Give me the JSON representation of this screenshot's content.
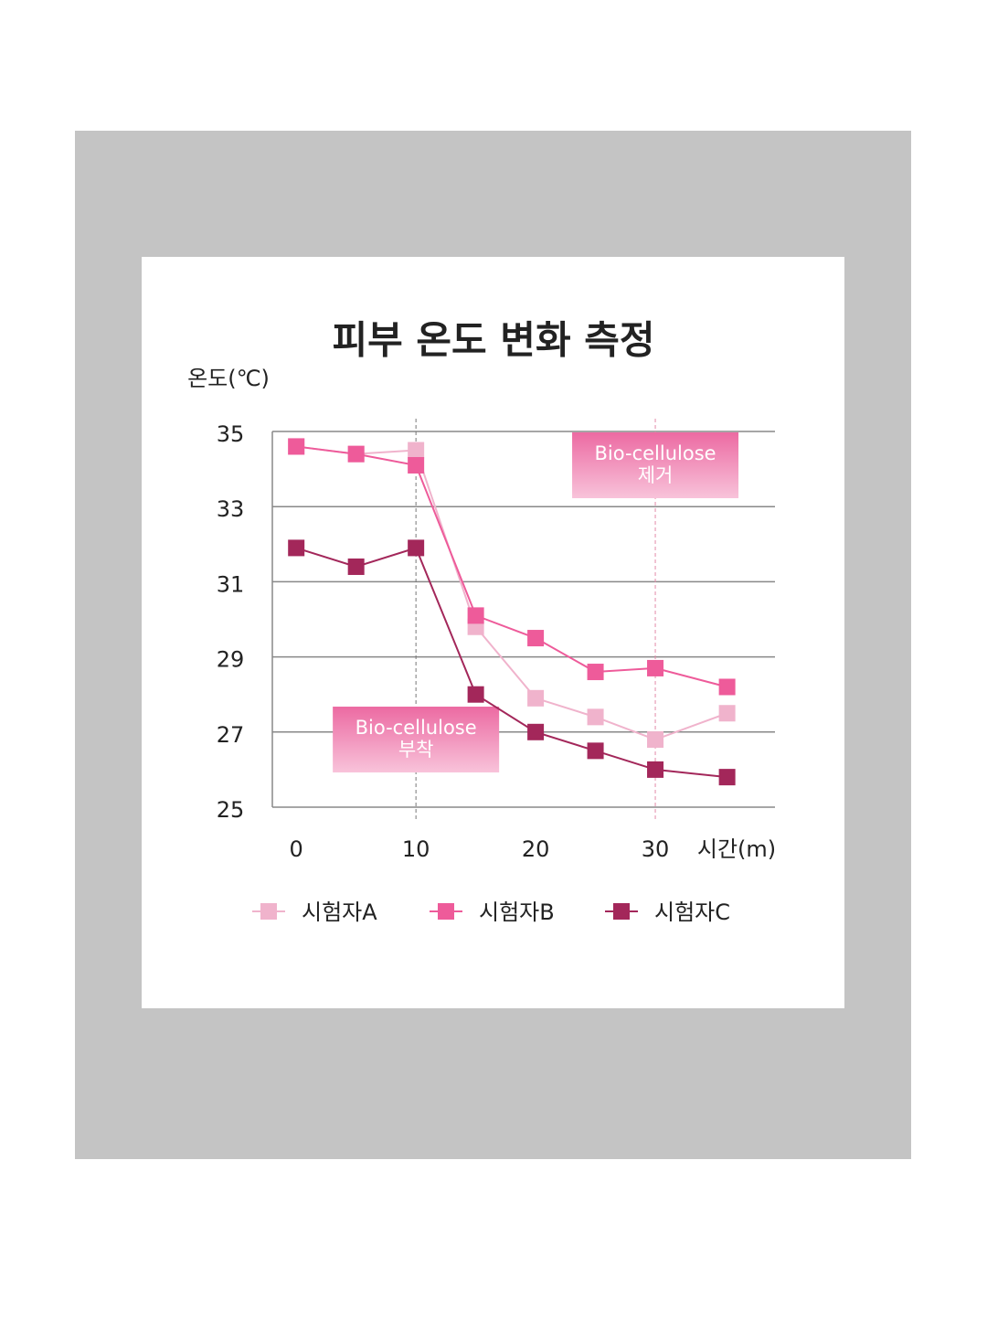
{
  "chart_data": {
    "type": "line",
    "title": "피부 온도 변화 측정",
    "y_label": "온도(℃)",
    "x_label": "시간(m)",
    "x": [
      0,
      5,
      10,
      15,
      20,
      25,
      30,
      36
    ],
    "series": [
      {
        "name": "시험자A",
        "color": "#f0b3cc",
        "values": [
          34.6,
          34.4,
          34.5,
          29.8,
          27.9,
          27.4,
          26.8,
          27.5
        ]
      },
      {
        "name": "시험자B",
        "color": "#ee5b9a",
        "values": [
          34.6,
          34.4,
          34.1,
          30.1,
          29.5,
          28.6,
          28.7,
          28.2
        ]
      },
      {
        "name": "시험자C",
        "color": "#a3275a",
        "values": [
          31.9,
          31.4,
          31.9,
          28.0,
          27.0,
          26.5,
          26.0,
          25.8
        ]
      }
    ],
    "xlim": [
      -2,
      40
    ],
    "xticks": [
      0,
      10,
      20,
      30
    ],
    "ylim": [
      25,
      35
    ],
    "yticks": [
      25,
      27,
      29,
      31,
      33,
      35
    ],
    "grid": true,
    "vlines": [
      10,
      30
    ],
    "annotations": [
      {
        "lines": [
          "Bio-cellulose",
          "부착"
        ],
        "x": 10,
        "y": 26.8
      },
      {
        "lines": [
          "Bio-cellulose",
          "제거"
        ],
        "x": 30,
        "y": 34.1
      }
    ],
    "legend": "bottom"
  }
}
